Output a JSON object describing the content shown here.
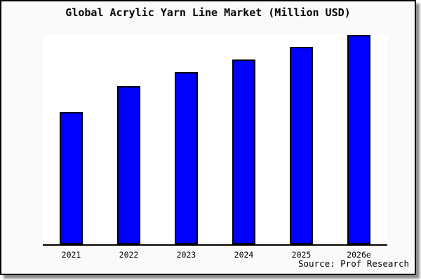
{
  "title": "Global Acrylic Yarn Line Market (Million USD)",
  "source": "Source: Prof Research",
  "colors": {
    "bar_fill": "#0000fe",
    "bar_border": "#000000",
    "card_background": "#fafafa",
    "plot_background": "#ffffff",
    "frame_border": "#000000"
  },
  "chart_data": {
    "type": "bar",
    "title": "Global Acrylic Yarn Line Market (Million USD)",
    "categories": [
      "2021",
      "2022",
      "2023",
      "2024",
      "2025",
      "2026e"
    ],
    "values": [
      63,
      75.5,
      82,
      88,
      94,
      100
    ],
    "xlabel": "",
    "ylabel": "",
    "ylim": [
      0,
      100.5
    ],
    "note": "No y-axis ticks shown; values are relative bar heights indexed to 2026e = 100",
    "grid": false,
    "legend": false,
    "source_annotation": "Source: Prof Research"
  }
}
